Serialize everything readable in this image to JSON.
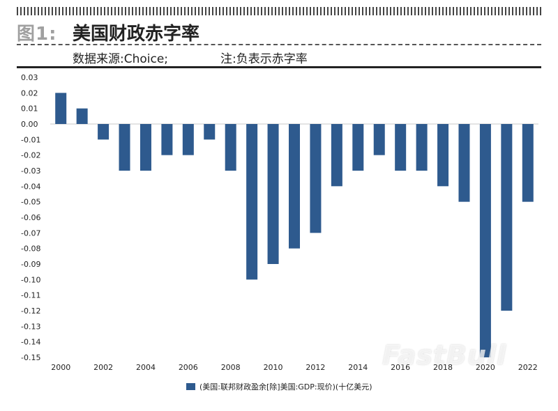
{
  "header": {
    "figure_label": "图1:",
    "title": "美国财政赤字率",
    "source": "数据来源:Choice;",
    "note": "注:负表示赤字率"
  },
  "watermark": "FastBull",
  "colors": {
    "bar": "#2e5a8e",
    "axis": "#c8c8c8",
    "text": "#222222"
  },
  "chart_data": {
    "type": "bar",
    "title": "美国财政赤字率",
    "categories": [
      "2000",
      "2001",
      "2002",
      "2003",
      "2004",
      "2005",
      "2006",
      "2007",
      "2008",
      "2009",
      "2010",
      "2011",
      "2012",
      "2013",
      "2014",
      "2015",
      "2016",
      "2017",
      "2018",
      "2019",
      "2020",
      "2021",
      "2022"
    ],
    "x_tick_labels": [
      "2000",
      "2002",
      "2004",
      "2006",
      "2008",
      "2010",
      "2012",
      "2014",
      "2016",
      "2018",
      "2020",
      "2022"
    ],
    "series": [
      {
        "name": "(美国:联邦财政盈余[除]美国:GDP:现价)(十亿美元)",
        "values": [
          0.02,
          0.01,
          -0.01,
          -0.03,
          -0.03,
          -0.02,
          -0.02,
          -0.01,
          -0.03,
          -0.1,
          -0.09,
          -0.08,
          -0.07,
          -0.04,
          -0.03,
          -0.02,
          -0.03,
          -0.03,
          -0.04,
          -0.05,
          -0.15,
          -0.12,
          -0.05
        ]
      }
    ],
    "ylim": [
      -0.15,
      0.03
    ],
    "y_ticks": [
      "0.03",
      "0.02",
      "0.01",
      "0.00",
      "-0.01",
      "-0.02",
      "-0.03",
      "-0.04",
      "-0.05",
      "-0.06",
      "-0.07",
      "-0.08",
      "-0.09",
      "-0.10",
      "-0.11",
      "-0.12",
      "-0.13",
      "-0.14",
      "-0.15"
    ],
    "xlabel": "",
    "ylabel": "",
    "legend_position": "bottom-center"
  }
}
